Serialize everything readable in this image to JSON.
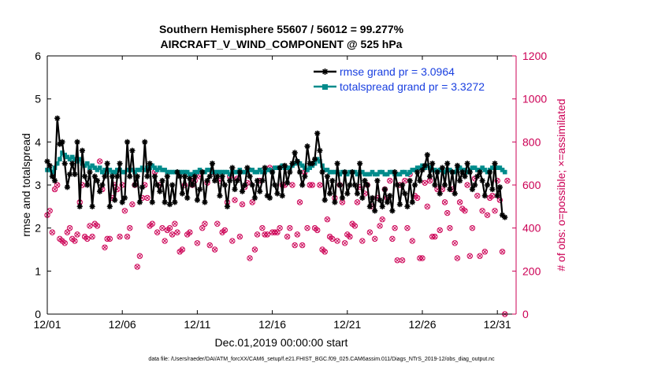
{
  "chart_data": {
    "type": "line",
    "title": "Southern Hemisphere 55607 / 56012 = 99.277%",
    "subtitle": "AIRCRAFT_V_WIND_COMPONENT @ 525 hPa",
    "xlabel": "Dec.01,2019 00:00:00 start",
    "ylabel": "rmse and totalspread",
    "ylabel_right": "# of obs: o=possible; ×=assimilated",
    "x_ticks": [
      "12/01",
      "12/06",
      "12/11",
      "12/16",
      "12/21",
      "12/26",
      "12/31"
    ],
    "y_ticks": [
      "0",
      "1",
      "2",
      "3",
      "4",
      "5",
      "6"
    ],
    "y_right_ticks": [
      "0",
      "200",
      "400",
      "600",
      "800",
      "1000",
      "1200"
    ],
    "xlim": [
      0,
      31.25
    ],
    "ylim": [
      0,
      6
    ],
    "ylim_right": [
      0,
      1200
    ],
    "grid": false,
    "legend_position": "top-right",
    "series": [
      {
        "name": "rmse grand pr = 3.0964",
        "color": "#000000",
        "marker": "asterisk",
        "values": [
          3.55,
          3.45,
          3.2,
          3.1,
          4.55,
          3.95,
          4.0,
          3.5,
          2.95,
          3.25,
          3.5,
          3.25,
          4.0,
          2.5,
          3.8,
          3.2,
          3.0,
          3.3,
          2.5,
          3.2,
          3.1,
          2.85,
          3.0,
          3.2,
          3.5,
          2.5,
          3.2,
          2.65,
          3.2,
          3.5,
          2.6,
          2.7,
          4.0,
          3.2,
          3.8,
          3.0,
          3.2,
          2.6,
          2.95,
          4.0,
          3.2,
          3.5,
          2.6,
          3.2,
          3.0,
          2.85,
          3.1,
          2.6,
          3.2,
          2.55,
          3.0,
          2.6,
          3.3,
          3.2,
          2.8,
          3.2,
          2.7,
          3.15,
          3.0,
          3.2,
          2.65,
          2.9,
          3.3,
          2.6,
          3.1,
          3.2,
          3.5,
          3.1,
          3.2,
          2.75,
          3.2,
          3.0,
          2.5,
          3.1,
          3.4,
          2.9,
          3.1,
          3.3,
          2.85,
          3.0,
          3.4,
          3.2,
          3.0,
          2.7,
          3.1,
          2.85,
          3.1,
          3.4,
          2.75,
          2.7,
          3.3,
          3.0,
          2.8,
          3.4,
          2.75,
          3.45,
          3.05,
          3.3,
          3.5,
          3.75,
          3.55,
          3.3,
          3.0,
          3.2,
          3.9,
          3.5,
          3.5,
          3.6,
          4.2,
          3.8,
          3.3,
          2.65,
          3.2,
          2.8,
          3.1,
          2.6,
          3.5,
          3.0,
          2.7,
          3.3,
          2.8,
          3.0,
          3.3,
          3.0,
          2.8,
          3.5,
          2.7,
          3.1,
          3.0,
          2.5,
          2.7,
          2.4,
          3.1,
          2.65,
          2.5,
          2.9,
          2.6,
          2.75,
          2.4,
          3.3,
          3.0,
          2.55,
          3.0,
          2.8,
          2.5,
          3.1,
          2.6,
          3.0,
          3.3,
          3.1,
          3.35,
          3.45,
          3.7,
          3.2,
          3.5,
          3.0,
          3.3,
          2.8,
          3.4,
          3.0,
          3.5,
          2.9,
          3.3,
          2.8,
          3.45,
          3.1,
          3.3,
          3.2,
          3.5,
          3.3,
          2.9,
          3.0,
          3.2,
          3.3,
          3.1,
          2.75,
          3.0,
          3.3,
          2.9,
          3.5,
          2.75,
          2.95,
          2.3,
          2.25
        ]
      },
      {
        "name": "totalspread grand pr = 3.3272",
        "color": "#008b8b",
        "marker": "square",
        "values": [
          3.35,
          3.35,
          3.3,
          3.4,
          3.5,
          3.6,
          3.75,
          3.7,
          3.65,
          3.6,
          3.65,
          3.6,
          3.55,
          3.6,
          3.5,
          3.45,
          3.5,
          3.4,
          3.45,
          3.4,
          3.35,
          3.4,
          3.3,
          3.35,
          3.3,
          3.35,
          3.3,
          3.3,
          3.35,
          3.35,
          3.3,
          3.3,
          3.35,
          3.35,
          3.35,
          3.3,
          3.35,
          3.35,
          3.4,
          3.35,
          3.4,
          3.4,
          3.45,
          3.4,
          3.35,
          3.4,
          3.35,
          3.35,
          3.3,
          3.3,
          3.3,
          3.3,
          3.3,
          3.3,
          3.3,
          3.3,
          3.3,
          3.25,
          3.25,
          3.3,
          3.3,
          3.35,
          3.3,
          3.3,
          3.35,
          3.35,
          3.3,
          3.3,
          3.3,
          3.3,
          3.3,
          3.3,
          3.3,
          3.25,
          3.3,
          3.3,
          3.3,
          3.35,
          3.3,
          3.3,
          3.3,
          3.35,
          3.35,
          3.3,
          3.3,
          3.35,
          3.3,
          3.3,
          3.35,
          3.35,
          3.3,
          3.4,
          3.4,
          3.4,
          3.45,
          3.4,
          3.4,
          3.4,
          3.45,
          3.5,
          3.55,
          3.5,
          3.45,
          3.4,
          3.35,
          3.4,
          3.45,
          3.5,
          3.6,
          3.55,
          3.45,
          3.35,
          3.35,
          3.3,
          3.3,
          3.3,
          3.3,
          3.25,
          3.3,
          3.3,
          3.25,
          3.3,
          3.3,
          3.3,
          3.25,
          3.3,
          3.3,
          3.25,
          3.25,
          3.25,
          3.3,
          3.25,
          3.25,
          3.3,
          3.3,
          3.25,
          3.25,
          3.3,
          3.3,
          3.25,
          3.25,
          3.25,
          3.3,
          3.3,
          3.25,
          3.3,
          3.35,
          3.35,
          3.4,
          3.4,
          3.45,
          3.4,
          3.45,
          3.4,
          3.35,
          3.35,
          3.3,
          3.35,
          3.35,
          3.3,
          3.35,
          3.35,
          3.3,
          3.3,
          3.35,
          3.4,
          3.35,
          3.35,
          3.3,
          3.35,
          3.4,
          3.4,
          3.35,
          3.35,
          3.4,
          3.35,
          3.3,
          3.35,
          3.4,
          3.4,
          3.4,
          3.4,
          3.35,
          3.3
        ]
      },
      {
        "name": "possible obs",
        "color": "#cc0055",
        "marker": "circle",
        "axis": "right",
        "values": [
          460,
          480,
          380,
          580,
          600,
          350,
          340,
          330,
          380,
          400,
          350,
          340,
          370,
          520,
          600,
          360,
          350,
          410,
          360,
          420,
          410,
          710,
          580,
          310,
          350,
          350,
          540,
          600,
          580,
          360,
          600,
          480,
          360,
          400,
          510,
          600,
          220,
          270,
          540,
          600,
          540,
          410,
          420,
          660,
          380,
          600,
          400,
          340,
          390,
          400,
          370,
          420,
          380,
          290,
          300,
          600,
          370,
          380,
          600,
          620,
          330,
          640,
          400,
          420,
          610,
          320,
          660,
          300,
          420,
          620,
          380,
          390,
          520,
          640,
          340,
          530,
          630,
          360,
          510,
          590,
          610,
          260,
          520,
          300,
          370,
          620,
          400,
          370,
          370,
          680,
          380,
          380,
          380,
          400,
          600,
          600,
          360,
          400,
          600,
          320,
          370,
          520,
          320,
          660,
          400,
          600,
          600,
          400,
          390,
          600,
          300,
          290,
          440,
          360,
          350,
          540,
          340,
          600,
          520,
          330,
          370,
          360,
          420,
          410,
          520,
          590,
          340,
          560,
          600,
          380,
          500,
          350,
          540,
          410,
          440,
          580,
          540,
          620,
          350,
          400,
          250,
          600,
          250,
          620,
          400,
          650,
          340,
          550,
          540,
          260,
          260,
          610,
          500,
          620,
          360,
          360,
          580,
          390,
          580,
          520,
          470,
          400,
          580,
          330,
          260,
          520,
          490,
          480,
          600,
          270,
          400,
          630,
          550,
          270,
          480,
          290,
          460,
          540,
          550,
          480,
          620,
          530,
          290,
          0,
          620
        ]
      }
    ]
  },
  "footer": "data file: /Users/raeder/DAI/ATM_forcXX/CAM6_setup/f.e21.FHIST_BGC.f09_025.CAM6assim.011/Diags_NTrS_2019-12/obs_diag_output.nc"
}
